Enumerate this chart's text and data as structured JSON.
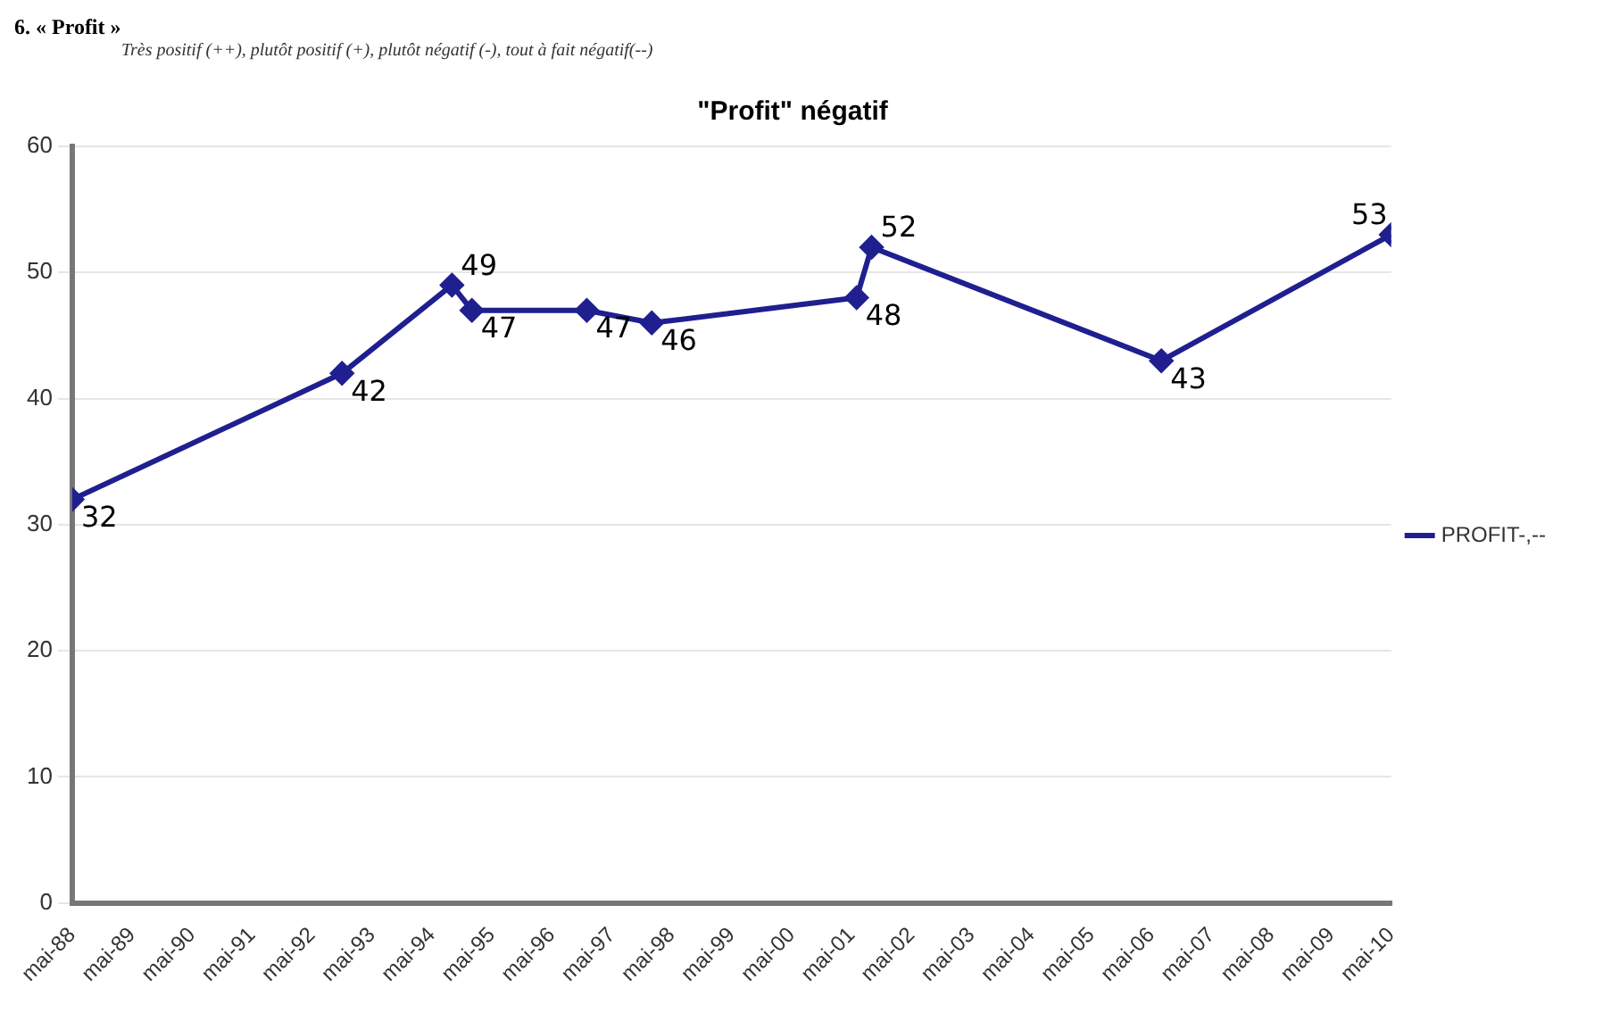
{
  "chart_data": {
    "type": "line",
    "title": "\"Profit\" négatif",
    "annotations": [
      "6. « Profit »",
      "Très positif (++), plutôt positif (+), plutôt négatif (-), tout à fait négatif(--)"
    ],
    "x": [
      "1988-05",
      "1992-11",
      "1994-09",
      "1995-01",
      "1996-12",
      "1998-01",
      "2001-06",
      "2001-09",
      "2006-07",
      "2010-05"
    ],
    "series": [
      {
        "name": "PROFIT-,--",
        "color": "#1f1f8f",
        "values": [
          32,
          42,
          49,
          47,
          47,
          46,
          48,
          52,
          43,
          53
        ]
      }
    ],
    "xlim": [
      "1988-05",
      "2010-05"
    ],
    "xticks": [
      {
        "value": "1988-05",
        "label": "mai-88"
      },
      {
        "value": "1989-05",
        "label": "mai-89"
      },
      {
        "value": "1990-05",
        "label": "mai-90"
      },
      {
        "value": "1991-05",
        "label": "mai-91"
      },
      {
        "value": "1992-05",
        "label": "mai-92"
      },
      {
        "value": "1993-05",
        "label": "mai-93"
      },
      {
        "value": "1994-05",
        "label": "mai-94"
      },
      {
        "value": "1995-05",
        "label": "mai-95"
      },
      {
        "value": "1996-05",
        "label": "mai-96"
      },
      {
        "value": "1997-05",
        "label": "mai-97"
      },
      {
        "value": "1998-05",
        "label": "mai-98"
      },
      {
        "value": "1999-05",
        "label": "mai-99"
      },
      {
        "value": "2000-05",
        "label": "mai-00"
      },
      {
        "value": "2001-05",
        "label": "mai-01"
      },
      {
        "value": "2002-05",
        "label": "mai-02"
      },
      {
        "value": "2003-05",
        "label": "mai-03"
      },
      {
        "value": "2004-05",
        "label": "mai-04"
      },
      {
        "value": "2005-05",
        "label": "mai-05"
      },
      {
        "value": "2006-05",
        "label": "mai-06"
      },
      {
        "value": "2007-05",
        "label": "mai-07"
      },
      {
        "value": "2008-05",
        "label": "mai-08"
      },
      {
        "value": "2009-05",
        "label": "mai-09"
      },
      {
        "value": "2010-05",
        "label": "mai-10"
      }
    ],
    "ylim": [
      0,
      60
    ],
    "yticks": [
      0,
      10,
      20,
      30,
      40,
      50,
      60
    ],
    "grid": "y",
    "legend": "right",
    "marker": "diamond",
    "line_style": "solid",
    "data_labels": true
  }
}
